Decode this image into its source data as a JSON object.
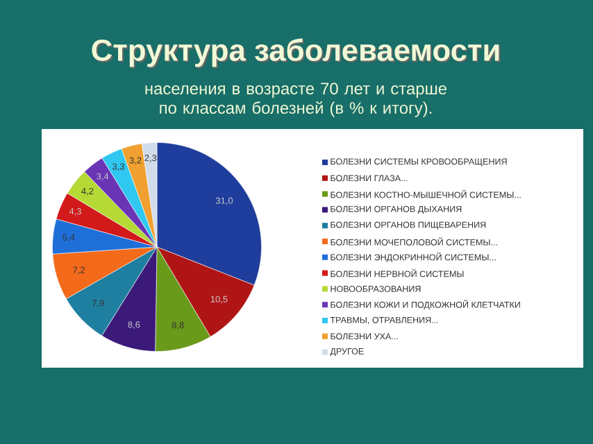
{
  "chart_data": {
    "type": "pie",
    "title": "Структура заболеваемости",
    "subtitle": "населения в возрасте 70 лет и старше по классам болезней (в % к итогу).",
    "categories": [
      "БОЛЕЗНИ СИСТЕМЫ КРОВООБРАЩЕНИЯ",
      "БОЛЕЗНИ ГЛАЗА...",
      "БОЛЕЗНИ КОСТНО-МЫШЕЧНОЙ СИСТЕМЫ...",
      "БОЛЕЗНИ ОРГАНОВ ДЫХАНИЯ",
      "БОЛЕЗНИ ОРГАНОВ ПИЩЕВАРЕНИЯ",
      "БОЛЕЗНИ МОЧЕПОЛОВОЙ СИСТЕМЫ...",
      "БОЛЕЗНИ ЭНДОКРИННОЙ СИСТЕМЫ...",
      "БОЛЕЗНИ НЕРВНОЙ СИСТЕМЫ",
      "НОВООБРАЗОВАНИЯ",
      "БОЛЕЗНИ КОЖИ И ПОДКОЖНОЙ КЛЕТЧАТКИ",
      "ТРАВМЫ, ОТРАВЛЕНИЯ...",
      "БОЛЕЗНИ УХА...",
      "ДРУГОЕ"
    ],
    "values": [
      31.0,
      10.5,
      8.8,
      8.6,
      7.9,
      7.2,
      5.4,
      4.3,
      4.2,
      3.4,
      3.3,
      3.2,
      2.3
    ],
    "value_labels": [
      "31,0",
      "10,5",
      "8,8",
      "8,6",
      "7,9",
      "7,2",
      "5,4",
      "4,3",
      "4,2",
      "3,4",
      "3,3",
      "3,2",
      "2,3"
    ],
    "colors": [
      "#1f3d9c",
      "#b01515",
      "#6a9a1a",
      "#3b1a7a",
      "#1f7fa0",
      "#f26a1a",
      "#1f6fd8",
      "#d21a1a",
      "#b5d935",
      "#6a35b5",
      "#30c8f0",
      "#f0a030",
      "#d0dcea"
    ],
    "legend": "right"
  }
}
